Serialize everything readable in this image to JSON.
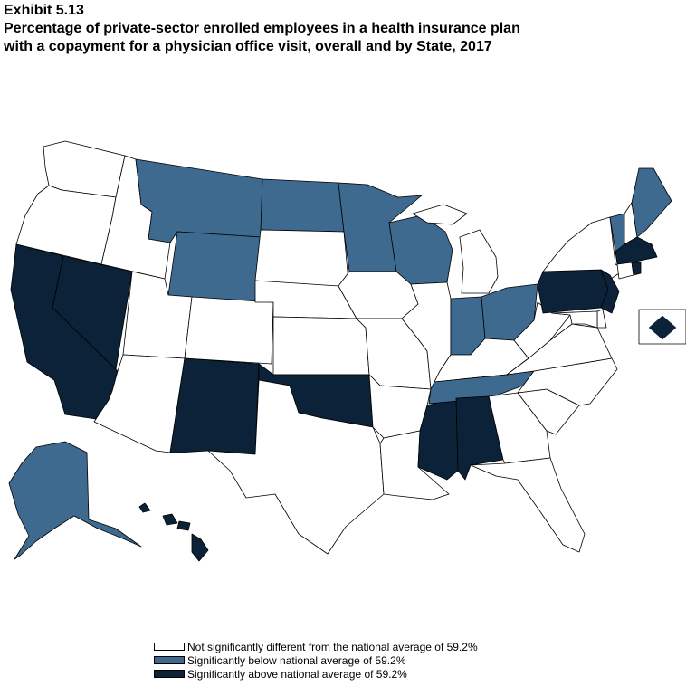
{
  "exhibit": "Exhibit 5.13",
  "title_line1": "Percentage of private-sector enrolled employees in a health insurance plan",
  "title_line2": "with a copayment for a physician office visit, overall and by State, 2017",
  "colors": {
    "not_significant": "#ffffff",
    "below": "#3f6a8f",
    "above": "#0b2239",
    "stroke": "#000000"
  },
  "legend": [
    {
      "category": "not_significant",
      "label": "Not significantly different from the national average of 59.2%"
    },
    {
      "category": "below",
      "label": "Significantly below national average of 59.2%"
    },
    {
      "category": "above",
      "label": "Significantly above national average of 59.2%"
    }
  ],
  "states": {
    "WA": "not_significant",
    "OR": "not_significant",
    "CA": "above",
    "NV": "above",
    "ID": "not_significant",
    "MT": "below",
    "WY": "below",
    "UT": "not_significant",
    "AZ": "not_significant",
    "CO": "not_significant",
    "NM": "above",
    "ND": "below",
    "SD": "not_significant",
    "NE": "not_significant",
    "KS": "not_significant",
    "OK": "above",
    "TX": "not_significant",
    "MN": "below",
    "IA": "not_significant",
    "MO": "not_significant",
    "AR": "not_significant",
    "LA": "not_significant",
    "WI": "below",
    "IL": "not_significant",
    "MS": "above",
    "MI": "not_significant",
    "IN": "below",
    "OH": "below",
    "KY": "not_significant",
    "TN": "below",
    "AL": "above",
    "GA": "not_significant",
    "FL": "not_significant",
    "SC": "not_significant",
    "NC": "not_significant",
    "VA": "not_significant",
    "WV": "not_significant",
    "PA": "above",
    "NY": "not_significant",
    "NJ": "above",
    "DE": "not_significant",
    "MD": "not_significant",
    "VT": "below",
    "NH": "not_significant",
    "ME": "below",
    "MA": "above",
    "CT": "not_significant",
    "RI": "above",
    "AK": "below",
    "HI": "above",
    "DC": "above"
  }
}
